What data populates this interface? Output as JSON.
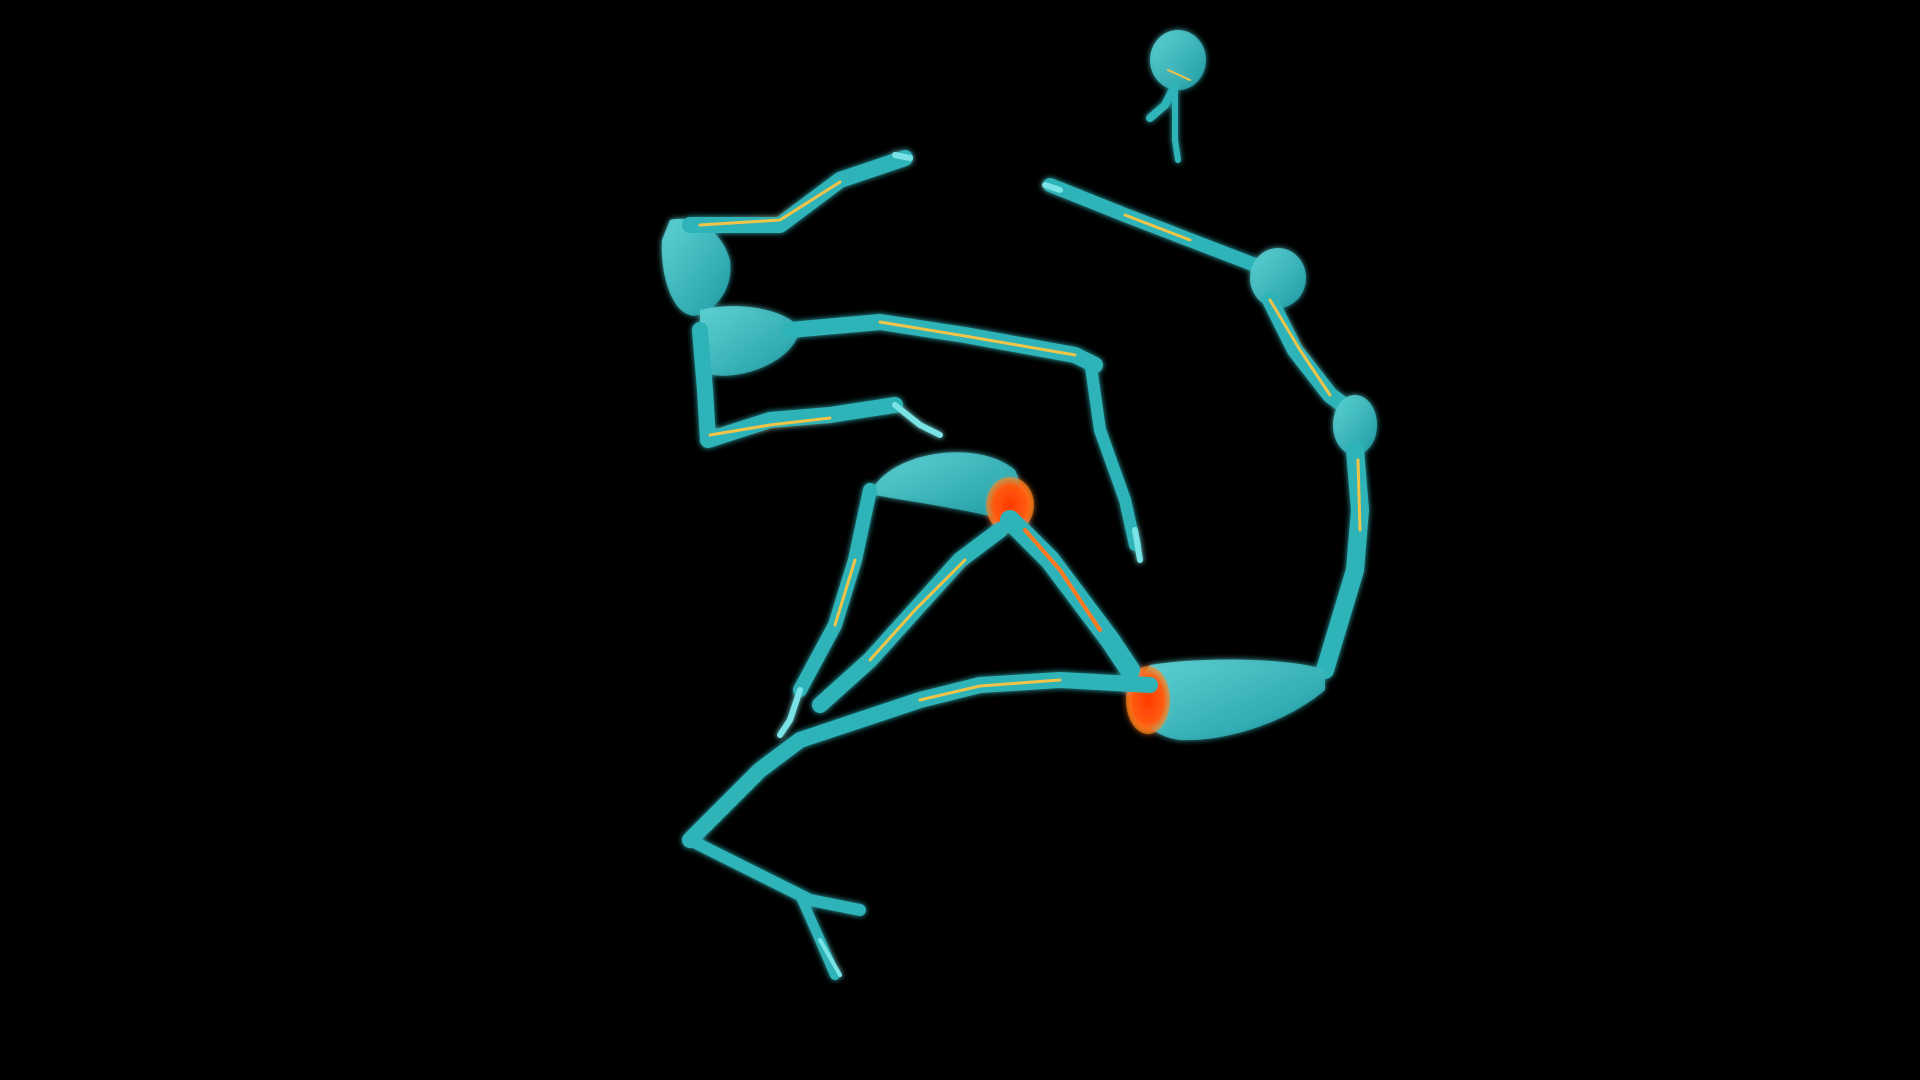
{
  "scene": {
    "background_color": "#000000",
    "body_color": "#2fb3b8",
    "body_highlight_color": "#7ae3e6",
    "nerve_color": "#f0c44a",
    "hotspot_color": "#ff4a10"
  }
}
